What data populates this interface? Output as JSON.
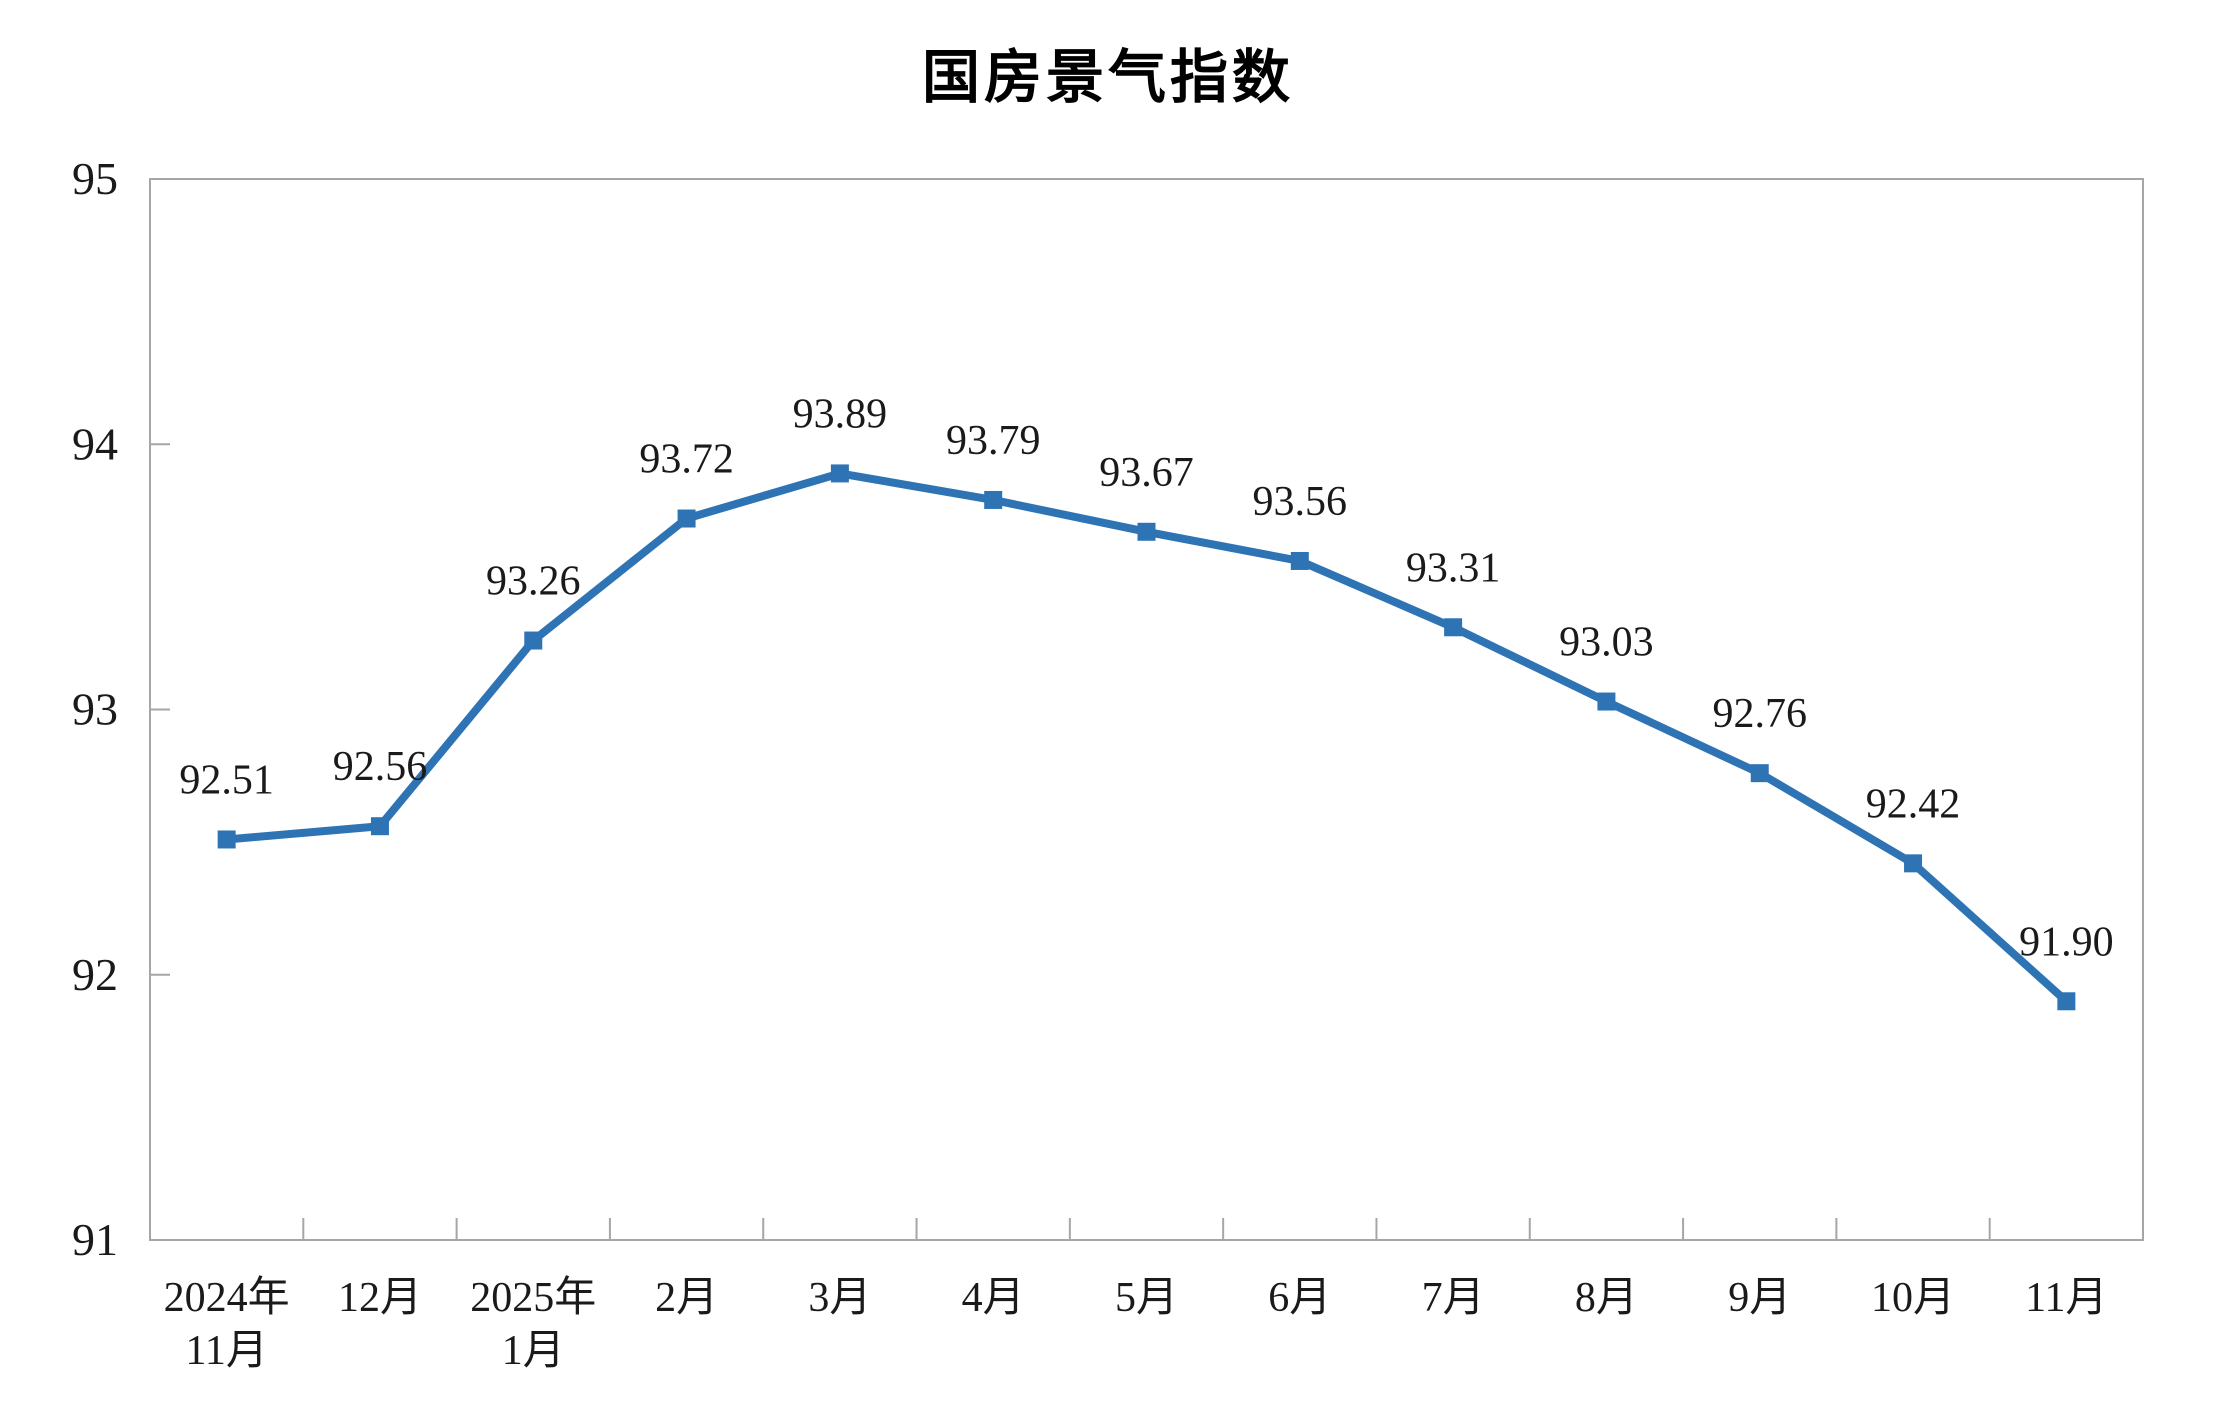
{
  "chart_data": {
    "type": "line",
    "title": "国房景气指数",
    "categories": [
      "2024年\n11月",
      "12月",
      "2025年\n1月",
      "2月",
      "3月",
      "4月",
      "5月",
      "6月",
      "7月",
      "8月",
      "9月",
      "10月",
      "11月"
    ],
    "series": [
      {
        "name": "国房景气指数",
        "values": [
          92.51,
          92.56,
          93.26,
          93.72,
          93.89,
          93.79,
          93.67,
          93.56,
          93.31,
          93.03,
          92.76,
          92.42,
          91.9
        ]
      }
    ],
    "data_labels": [
      "92.51",
      "92.56",
      "93.26",
      "93.72",
      "93.89",
      "93.79",
      "93.67",
      "93.56",
      "93.31",
      "93.03",
      "92.76",
      "92.42",
      "91.90"
    ],
    "xlabel": "",
    "ylabel": "",
    "ylim": [
      91,
      95
    ],
    "yticks": [
      91,
      92,
      93,
      94,
      95
    ],
    "grid": false,
    "legend": "none",
    "layout": {
      "marker": "square",
      "tick_direction": "inside",
      "plot_border": "box"
    },
    "colors": {
      "line": "#2E74B5",
      "marker": "#2E74B5",
      "text": "#1a1a1a",
      "axis": "#A6A6A6",
      "title": "#000000",
      "background": "#ffffff"
    }
  }
}
